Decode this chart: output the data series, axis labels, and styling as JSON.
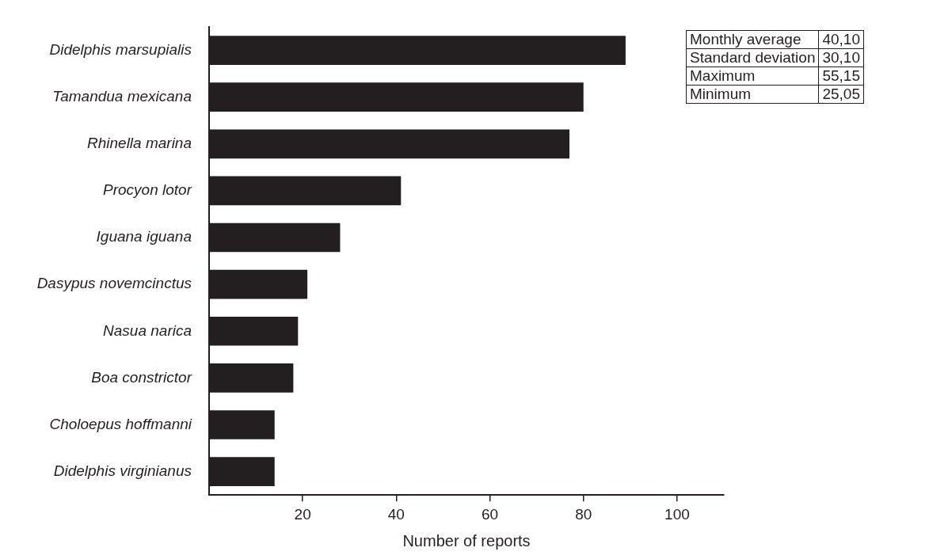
{
  "chart_data": {
    "type": "bar",
    "orientation": "horizontal",
    "xlabel": "Number of reports",
    "categories": [
      "Didelphis marsupialis",
      "Tamandua mexicana",
      "Rhinella marina",
      "Procyon lotor",
      "Iguana iguana",
      "Dasypus novemcinctus",
      "Nasua narica",
      "Boa constrictor",
      "Choloepus hoffmanni",
      "Didelphis virginianus"
    ],
    "values": [
      89,
      80,
      77,
      41,
      28,
      21,
      19,
      18,
      14,
      14
    ],
    "color": "#231f20",
    "xlim": [
      0,
      110
    ],
    "xticks": [
      20,
      40,
      60,
      80,
      100
    ],
    "grid": false,
    "legend": false,
    "annotations": [
      "Monthly average",
      "40,10",
      "Standard deviation",
      "30,10",
      "Maximum",
      "55,15",
      "Minimum",
      "25,05"
    ]
  }
}
